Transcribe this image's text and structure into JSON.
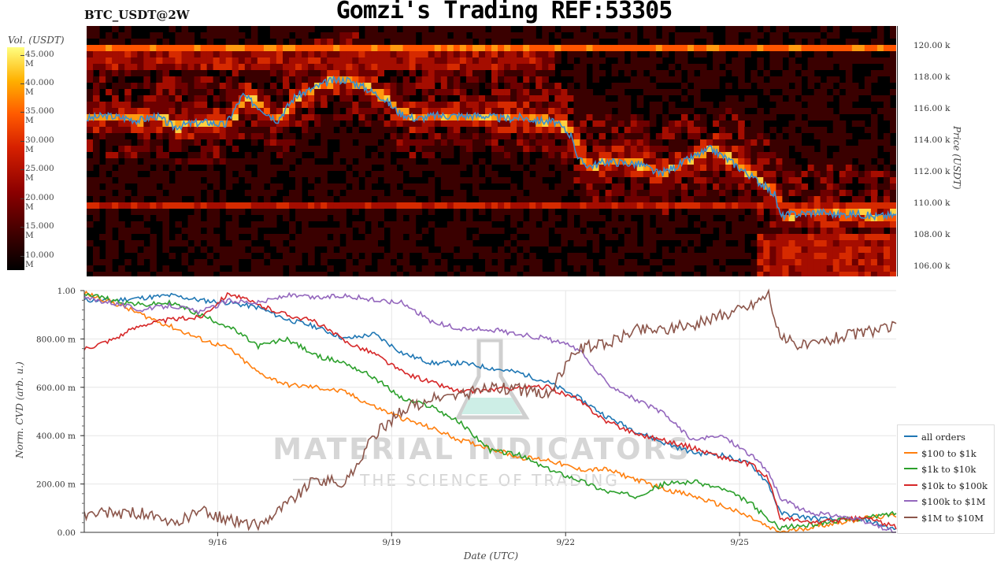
{
  "header": {
    "symbol": "BTC_USDT@2W",
    "title": "Gomzi's Trading REF:53305"
  },
  "volume_scale": {
    "label": "Vol. (USDT)",
    "ticks": [
      "45.000 M",
      "40.000 M",
      "35.000 M",
      "30.000 M",
      "25.000 M",
      "20.000 M",
      "15.000 M",
      "10.000 M"
    ]
  },
  "watermark": {
    "line1": "MATERIAL INDICATORS",
    "line2": "THE SCIENCE OF TRADING"
  },
  "colors": {
    "all_orders": "#1f77b4",
    "r100_1k": "#ff7f0e",
    "r1k_10k": "#2ca02c",
    "r10k_100k": "#d62728",
    "r100k_1m": "#9467bd",
    "r1m_10m": "#8c564b",
    "price_line": "#3a8fd0"
  },
  "chart_data": [
    {
      "type": "heatmap",
      "title": "",
      "ylabel": "Price (USDT)",
      "y_ticks": [
        "120.00 k",
        "118.00 k",
        "116.00 k",
        "114.00 k",
        "112.00 k",
        "110.00 k",
        "108.00 k",
        "106.00 k"
      ],
      "y_tick_values": [
        120000,
        118000,
        116000,
        114000,
        112000,
        110000,
        108000,
        106000
      ],
      "ylim": [
        105400,
        121300
      ],
      "x_range_days": [
        0,
        14
      ],
      "price_line": {
        "name": "price",
        "x": [
          0,
          0.3,
          0.6,
          0.9,
          1.2,
          1.5,
          1.8,
          2.1,
          2.4,
          2.7,
          3.0,
          3.3,
          3.6,
          3.9,
          4.2,
          4.5,
          4.8,
          5.1,
          5.4,
          5.7,
          6.0,
          6.3,
          6.6,
          6.9,
          7.2,
          7.5,
          7.8,
          8.1,
          8.4,
          8.5,
          8.7,
          9.0,
          9.3,
          9.6,
          9.9,
          10.2,
          10.5,
          10.8,
          11.1,
          11.4,
          11.7,
          11.9,
          12.0,
          12.1,
          12.4,
          12.7,
          13.0,
          13.3,
          13.6,
          14.0
        ],
        "y": [
          115400,
          115600,
          115500,
          115300,
          115600,
          114900,
          115100,
          115200,
          115000,
          116900,
          116100,
          115300,
          116800,
          117300,
          117800,
          117900,
          117400,
          116800,
          115800,
          115400,
          115600,
          115600,
          115600,
          115600,
          115400,
          115500,
          115300,
          115200,
          114300,
          112800,
          112400,
          112700,
          112600,
          112500,
          111900,
          112400,
          113000,
          113500,
          112800,
          112000,
          111200,
          110600,
          109200,
          109300,
          109400,
          109500,
          109300,
          109400,
          109200,
          109300
        ]
      }
    },
    {
      "type": "line",
      "title": "",
      "xlabel": "Date (UTC)",
      "ylabel": "Norm. CVD (arb. u.)",
      "x_ticks": [
        "9/16",
        "9/19",
        "9/22",
        "9/25"
      ],
      "x_tick_positions_days": [
        2.3,
        5.3,
        8.3,
        11.3
      ],
      "xlim": [
        0,
        14
      ],
      "ylim": [
        0,
        1
      ],
      "y_ticks": [
        "0.00",
        "200.00 m",
        "400.00 m",
        "600.00 m",
        "800.00 m",
        "1.00"
      ],
      "y_tick_values": [
        0,
        0.2,
        0.4,
        0.6,
        0.8,
        1.0
      ],
      "grid": true,
      "legend_position": "right",
      "x": [
        0,
        0.5,
        1.0,
        1.5,
        2.0,
        2.5,
        3.0,
        3.5,
        4.0,
        4.5,
        5.0,
        5.5,
        6.0,
        6.5,
        7.0,
        7.5,
        8.0,
        8.5,
        9.0,
        9.5,
        10.0,
        10.5,
        11.0,
        11.5,
        11.8,
        12.0,
        12.5,
        13.0,
        13.5,
        14.0
      ],
      "series": [
        {
          "name": "all orders",
          "values": [
            0.96,
            0.96,
            0.97,
            0.98,
            0.96,
            0.95,
            0.93,
            0.88,
            0.85,
            0.8,
            0.82,
            0.74,
            0.7,
            0.7,
            0.68,
            0.66,
            0.62,
            0.56,
            0.48,
            0.42,
            0.37,
            0.33,
            0.32,
            0.28,
            0.2,
            0.08,
            0.06,
            0.05,
            0.05,
            0.01
          ]
        },
        {
          "name": "$100 to $1k",
          "values": [
            0.99,
            0.95,
            0.9,
            0.85,
            0.8,
            0.76,
            0.66,
            0.61,
            0.6,
            0.58,
            0.52,
            0.47,
            0.43,
            0.38,
            0.35,
            0.31,
            0.3,
            0.26,
            0.26,
            0.22,
            0.18,
            0.15,
            0.11,
            0.06,
            0.02,
            0.0,
            0.02,
            0.04,
            0.06,
            0.07
          ]
        },
        {
          "name": "$1k to $10k",
          "values": [
            0.99,
            0.96,
            0.94,
            0.95,
            0.9,
            0.85,
            0.77,
            0.8,
            0.73,
            0.7,
            0.64,
            0.55,
            0.52,
            0.45,
            0.34,
            0.32,
            0.26,
            0.22,
            0.17,
            0.15,
            0.2,
            0.21,
            0.18,
            0.12,
            0.05,
            0.02,
            0.03,
            0.05,
            0.06,
            0.08
          ]
        },
        {
          "name": "$10k to $100k",
          "values": [
            0.76,
            0.8,
            0.86,
            0.88,
            0.89,
            0.99,
            0.94,
            0.9,
            0.87,
            0.79,
            0.74,
            0.66,
            0.62,
            0.58,
            0.59,
            0.6,
            0.6,
            0.55,
            0.46,
            0.41,
            0.38,
            0.35,
            0.31,
            0.28,
            0.22,
            0.06,
            0.04,
            0.05,
            0.06,
            0.02
          ]
        },
        {
          "name": "$100k to $1M",
          "values": [
            0.97,
            0.95,
            0.92,
            0.94,
            0.91,
            0.96,
            0.95,
            0.98,
            0.97,
            0.98,
            0.96,
            0.95,
            0.87,
            0.84,
            0.84,
            0.82,
            0.8,
            0.76,
            0.62,
            0.55,
            0.49,
            0.38,
            0.4,
            0.32,
            0.25,
            0.14,
            0.08,
            0.07,
            0.04,
            0.0
          ]
        },
        {
          "name": "$1M to $10M",
          "values": [
            0.07,
            0.08,
            0.08,
            0.03,
            0.09,
            0.05,
            0.03,
            0.12,
            0.22,
            0.2,
            0.4,
            0.51,
            0.55,
            0.57,
            0.6,
            0.59,
            0.57,
            0.76,
            0.78,
            0.84,
            0.84,
            0.86,
            0.9,
            0.94,
            0.99,
            0.8,
            0.77,
            0.81,
            0.83,
            0.85
          ]
        }
      ]
    }
  ]
}
